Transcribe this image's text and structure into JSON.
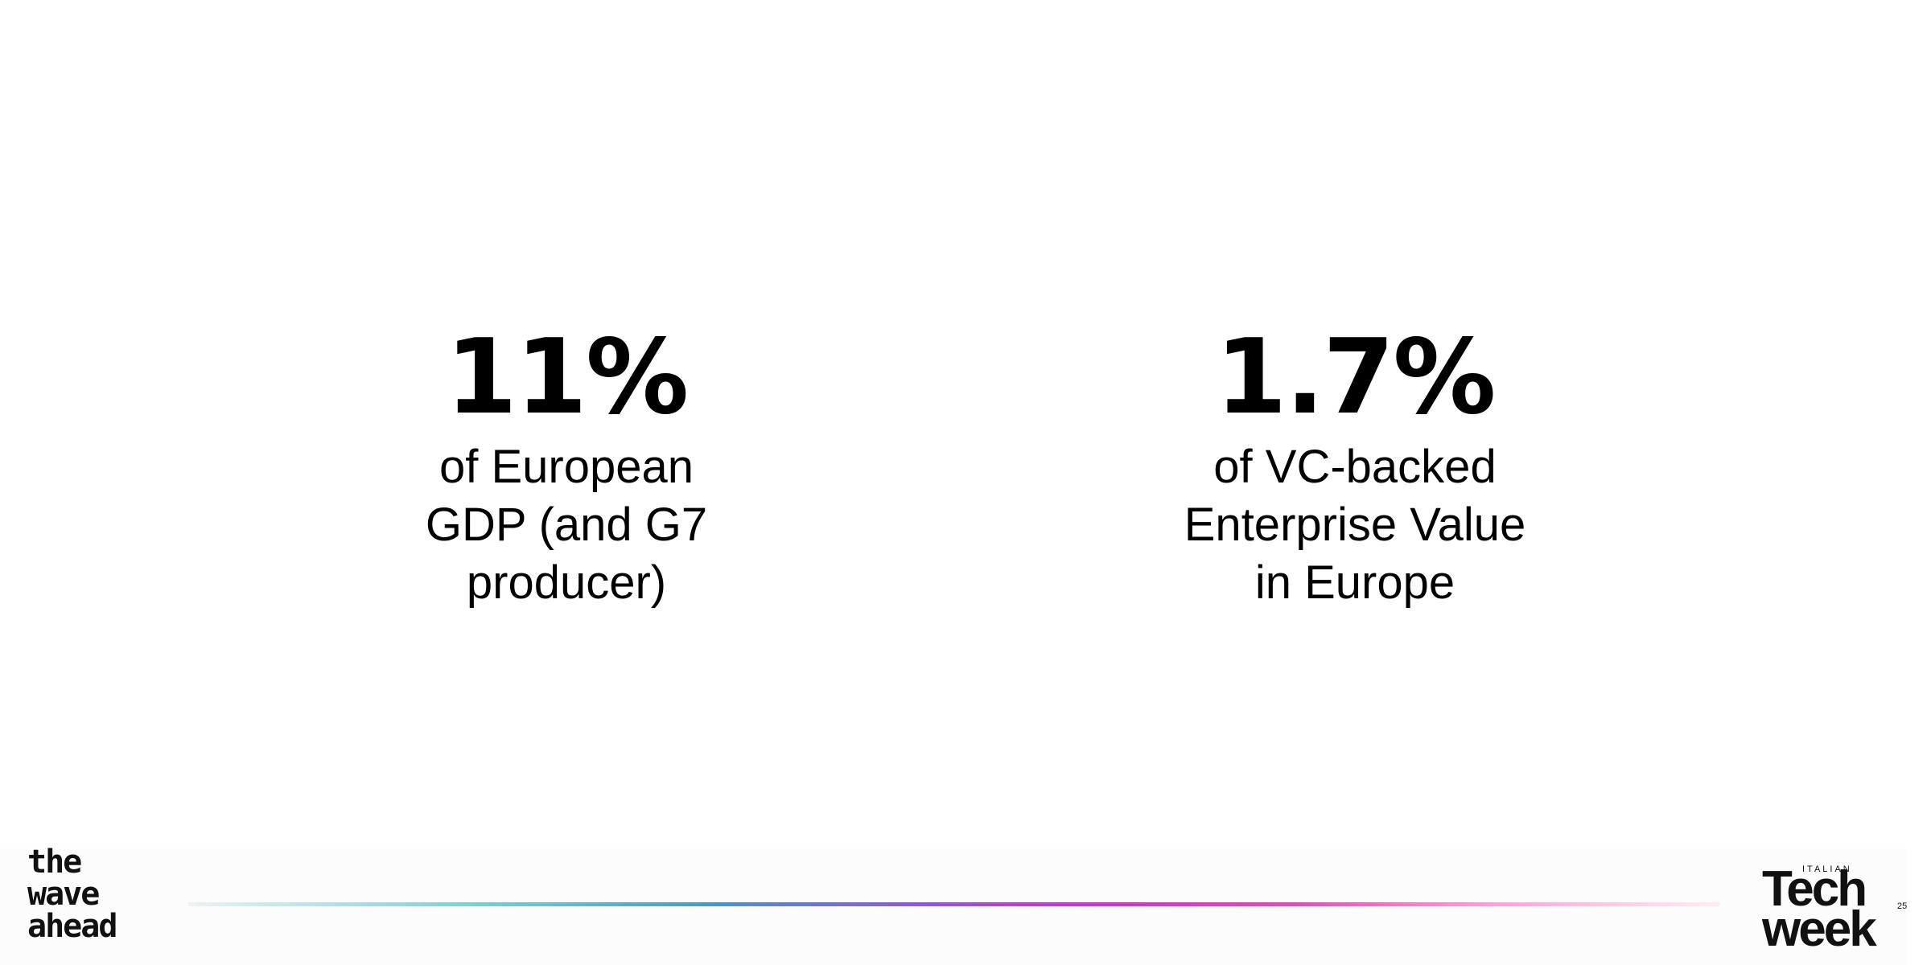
{
  "stats": [
    {
      "value": "11%",
      "lines": [
        "of European",
        "GDP (and G7",
        "producer)"
      ]
    },
    {
      "value": "1.7%",
      "lines": [
        "of VC-backed",
        "Enterprise Value",
        "in Europe"
      ]
    }
  ],
  "footer": {
    "left_logo": [
      "the",
      "wave",
      "ahead"
    ],
    "right_logo": {
      "small": "ITALIAN",
      "lines": [
        "Tech",
        "week"
      ],
      "number": "25"
    }
  }
}
